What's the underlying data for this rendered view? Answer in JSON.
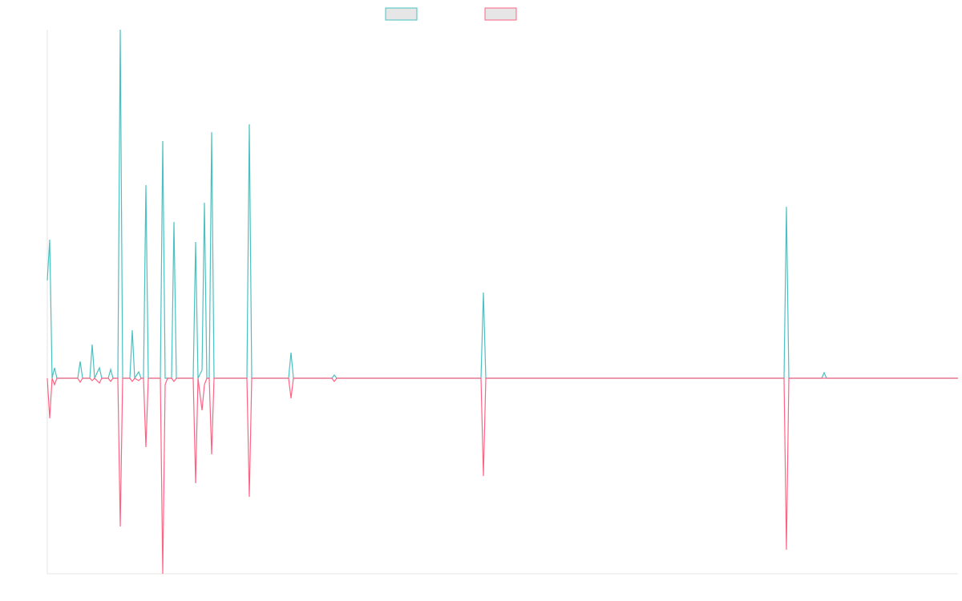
{
  "chart_data": {
    "type": "line",
    "x": [
      0,
      3,
      6,
      9,
      12,
      38,
      41,
      44,
      53,
      56,
      59,
      65,
      68,
      76,
      79,
      82,
      88,
      91,
      94,
      103,
      106,
      109,
      114,
      117,
      120,
      123,
      126,
      141,
      144,
      147,
      150,
      155,
      158,
      161,
      182,
      185,
      188,
      193,
      196,
      199,
      202,
      205,
      208,
      249,
      252,
      255,
      301,
      304,
      307,
      355,
      358,
      361,
      541,
      544,
      547,
      919,
      922,
      925,
      966,
      969,
      972,
      1136
    ],
    "series": [
      {
        "color": "#4bc0c0",
        "values": [
          122,
          173,
          0,
          13,
          0,
          0,
          21,
          0,
          0,
          42,
          0,
          13,
          0,
          0,
          11,
          0,
          0,
          435,
          0,
          0,
          60,
          0,
          8,
          0,
          0,
          241,
          0,
          0,
          296,
          0,
          0,
          0,
          195,
          0,
          0,
          170,
          0,
          10,
          219,
          0,
          0,
          307,
          0,
          0,
          317,
          0,
          0,
          32,
          0,
          0,
          4,
          0,
          0,
          107,
          0,
          0,
          214,
          0,
          0,
          7,
          0,
          0
        ]
      },
      {
        "color": "#ff6384",
        "values": [
          0,
          -50,
          0,
          -8,
          0,
          0,
          -5,
          0,
          0,
          -3,
          0,
          -6,
          0,
          0,
          -4,
          0,
          0,
          -185,
          0,
          0,
          -4,
          0,
          -3,
          0,
          0,
          -86,
          0,
          0,
          -244,
          -8,
          0,
          0,
          -4,
          0,
          0,
          -131,
          0,
          -40,
          -8,
          0,
          0,
          -95,
          0,
          0,
          -148,
          0,
          0,
          -25,
          0,
          0,
          -4,
          0,
          0,
          -122,
          0,
          0,
          -214,
          0,
          0,
          0,
          0,
          0
        ]
      }
    ],
    "xlim": [
      0,
      1136
    ],
    "ylim": [
      -244,
      435
    ]
  }
}
